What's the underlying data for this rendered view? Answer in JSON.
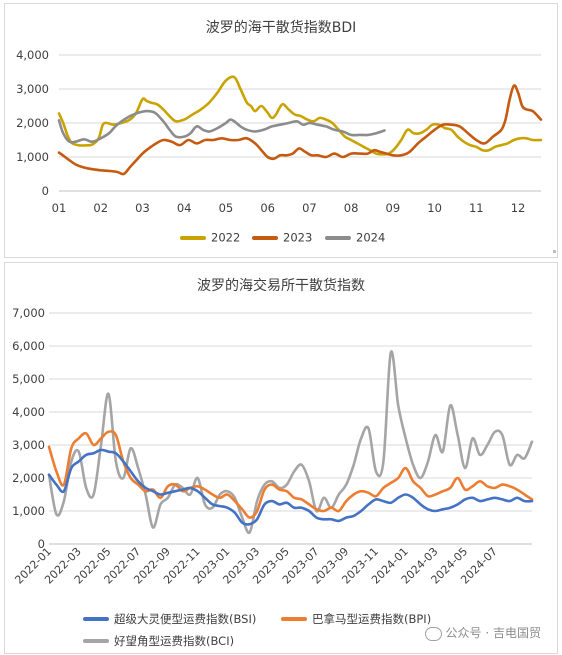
{
  "colors": {
    "y2022": "#c9a300",
    "y2023": "#c55a11",
    "y2024": "#8c8c8c",
    "bsi": "#4472c4",
    "bpi": "#ed7d31",
    "bci": "#a5a5a5",
    "grid": "#d9d9d9"
  },
  "watermark": {
    "icon": "wechat-icon",
    "text": "公众号 · 吉电国贸"
  },
  "chart_data": [
    {
      "type": "line",
      "title": "波罗的海干散货指数BDI",
      "legend_position": "bottom",
      "grid": true,
      "ylim": [
        0,
        4000
      ],
      "yticks": [
        "0",
        "1,000",
        "2,000",
        "3,000",
        "4,000"
      ],
      "xticks": [
        "01",
        "02",
        "03",
        "04",
        "05",
        "06",
        "07",
        "08",
        "09",
        "10",
        "11",
        "12"
      ],
      "xlim": [
        1,
        12.55
      ],
      "series": [
        {
          "name": "2022",
          "x": [
            1,
            1.1,
            1.2,
            1.3,
            1.45,
            1.6,
            1.8,
            1.95,
            2.05,
            2.15,
            2.3,
            2.5,
            2.7,
            2.85,
            3,
            3.1,
            3.2,
            3.35,
            3.5,
            3.65,
            3.8,
            4,
            4.2,
            4.4,
            4.6,
            4.8,
            5,
            5.2,
            5.35,
            5.5,
            5.6,
            5.7,
            5.85,
            6,
            6.1,
            6.2,
            6.35,
            6.5,
            6.65,
            6.8,
            6.95,
            7.1,
            7.25,
            7.4,
            7.55,
            7.7,
            7.85,
            8,
            8.15,
            8.3,
            8.45,
            8.6,
            8.75,
            8.9,
            9.05,
            9.2,
            9.35,
            9.5,
            9.65,
            9.8,
            9.95,
            10.1,
            10.25,
            10.4,
            10.55,
            10.7,
            10.85,
            11,
            11.15,
            11.3,
            11.45,
            11.6,
            11.75,
            11.9,
            12.05,
            12.2,
            12.35,
            12.55
          ],
          "y": [
            2280,
            2000,
            1650,
            1420,
            1350,
            1340,
            1370,
            1550,
            1950,
            2000,
            1950,
            2000,
            2100,
            2300,
            2700,
            2650,
            2600,
            2550,
            2400,
            2200,
            2050,
            2100,
            2250,
            2400,
            2600,
            2900,
            3250,
            3350,
            3000,
            2600,
            2500,
            2350,
            2500,
            2300,
            2150,
            2250,
            2550,
            2400,
            2250,
            2200,
            2100,
            2050,
            2150,
            2100,
            2000,
            1800,
            1600,
            1500,
            1400,
            1300,
            1200,
            1100,
            1080,
            1100,
            1250,
            1500,
            1800,
            1700,
            1700,
            1800,
            1950,
            1950,
            1850,
            1800,
            1600,
            1450,
            1350,
            1300,
            1200,
            1200,
            1300,
            1350,
            1400,
            1500,
            1550,
            1550,
            1500,
            1500
          ]
        },
        {
          "name": "2023",
          "x": [
            1,
            1.2,
            1.4,
            1.6,
            1.8,
            2,
            2.2,
            2.4,
            2.55,
            2.7,
            2.85,
            3,
            3.15,
            3.3,
            3.5,
            3.7,
            3.9,
            4.1,
            4.3,
            4.5,
            4.7,
            4.9,
            5.1,
            5.3,
            5.5,
            5.7,
            5.85,
            6,
            6.15,
            6.3,
            6.45,
            6.6,
            6.75,
            6.9,
            7.05,
            7.2,
            7.4,
            7.6,
            7.8,
            8,
            8.2,
            8.4,
            8.55,
            8.7,
            8.85,
            9,
            9.2,
            9.4,
            9.6,
            9.8,
            10,
            10.2,
            10.4,
            10.6,
            10.8,
            11,
            11.2,
            11.4,
            11.6,
            11.7,
            11.8,
            11.9,
            12,
            12.1,
            12.2,
            12.35,
            12.55
          ],
          "y": [
            1130,
            950,
            780,
            690,
            640,
            610,
            590,
            560,
            500,
            700,
            900,
            1100,
            1250,
            1380,
            1500,
            1450,
            1350,
            1500,
            1400,
            1500,
            1500,
            1550,
            1500,
            1500,
            1550,
            1400,
            1200,
            1000,
            950,
            1050,
            1050,
            1100,
            1250,
            1150,
            1050,
            1050,
            1000,
            1100,
            1000,
            1100,
            1100,
            1100,
            1200,
            1150,
            1100,
            1050,
            1050,
            1150,
            1400,
            1600,
            1800,
            1950,
            1950,
            1900,
            1700,
            1500,
            1400,
            1600,
            1800,
            2100,
            2700,
            3100,
            2900,
            2500,
            2400,
            2350,
            2100
          ]
        },
        {
          "name": "2024",
          "x": [
            1,
            1.1,
            1.25,
            1.4,
            1.6,
            1.8,
            2,
            2.2,
            2.35,
            2.5,
            2.7,
            2.9,
            3.1,
            3.3,
            3.5,
            3.65,
            3.8,
            4,
            4.15,
            4.3,
            4.45,
            4.6,
            4.8,
            5,
            5.1,
            5.2,
            5.35,
            5.5,
            5.7,
            5.9,
            6.1,
            6.3,
            6.5,
            6.7,
            6.85,
            7,
            7.2,
            7.4,
            7.6,
            7.8,
            8,
            8.2,
            8.4,
            8.6,
            8.8
          ],
          "y": [
            2080,
            1700,
            1450,
            1450,
            1520,
            1450,
            1550,
            1700,
            1900,
            2050,
            2200,
            2300,
            2350,
            2300,
            2050,
            1800,
            1600,
            1600,
            1700,
            1900,
            1800,
            1750,
            1850,
            2000,
            2100,
            2050,
            1900,
            1800,
            1750,
            1800,
            1900,
            1950,
            2000,
            2050,
            1950,
            2000,
            1950,
            1900,
            1800,
            1750,
            1650,
            1650,
            1650,
            1700,
            1780
          ]
        }
      ]
    },
    {
      "type": "line",
      "title": "波罗的海交易所干散货指数",
      "legend_position": "bottom",
      "grid": true,
      "ylim": [
        0,
        7000
      ],
      "yticks": [
        "0",
        "1,000",
        "2,000",
        "3,000",
        "4,000",
        "5,000",
        "6,000",
        "7,000"
      ],
      "xticks": [
        "2022-01",
        "2022-03",
        "2022-05",
        "2022-07",
        "2022-09",
        "2022-11",
        "2023-01",
        "2023-03",
        "2023-05",
        "2023-07",
        "2023-09",
        "2023-11",
        "2024-01",
        "2024-03",
        "2024-05",
        "2024-07"
      ],
      "xlim": [
        0,
        32.5
      ],
      "series": [
        {
          "name": "超级大灵便型运费指数(BSI)",
          "x": [
            0,
            0.5,
            1,
            1.5,
            2,
            2.5,
            3,
            3.5,
            4,
            4.5,
            5,
            5.5,
            6,
            6.5,
            7,
            7.5,
            8,
            8.5,
            9,
            9.5,
            10,
            10.5,
            11,
            11.5,
            12,
            12.5,
            13,
            13.5,
            14,
            14.5,
            15,
            15.5,
            16,
            16.5,
            17,
            17.5,
            18,
            18.5,
            19,
            19.5,
            20,
            20.5,
            21,
            21.5,
            22,
            22.5,
            23,
            23.5,
            24,
            24.5,
            25,
            25.5,
            26,
            26.5,
            27,
            27.5,
            28,
            28.5,
            29,
            29.5,
            30,
            30.5,
            31,
            31.5,
            32,
            32.5
          ],
          "y": [
            2100,
            1800,
            1600,
            2300,
            2500,
            2700,
            2750,
            2850,
            2800,
            2750,
            2500,
            2200,
            1900,
            1700,
            1600,
            1500,
            1550,
            1600,
            1650,
            1700,
            1600,
            1400,
            1200,
            1150,
            1100,
            950,
            650,
            600,
            750,
            1200,
            1300,
            1200,
            1250,
            1100,
            1100,
            1000,
            800,
            750,
            750,
            700,
            800,
            850,
            1000,
            1200,
            1350,
            1300,
            1250,
            1400,
            1500,
            1400,
            1200,
            1050,
            1000,
            1050,
            1100,
            1200,
            1350,
            1400,
            1300,
            1350,
            1400,
            1350,
            1300,
            1400,
            1300,
            1300
          ]
        },
        {
          "name": "巴拿马型运费指数(BPI)",
          "x": [
            0,
            0.5,
            1,
            1.5,
            2,
            2.5,
            3,
            3.5,
            4,
            4.5,
            5,
            5.5,
            6,
            6.5,
            7,
            7.5,
            8,
            8.5,
            9,
            9.5,
            10,
            10.5,
            11,
            11.5,
            12,
            12.5,
            13,
            13.5,
            14,
            14.5,
            15,
            15.5,
            16,
            16.5,
            17,
            17.5,
            18,
            18.5,
            19,
            19.5,
            20,
            20.5,
            21,
            21.5,
            22,
            22.5,
            23,
            23.5,
            24,
            24.5,
            25,
            25.5,
            26,
            26.5,
            27,
            27.5,
            28,
            28.5,
            29,
            29.5,
            30,
            30.5,
            31,
            31.5,
            32,
            32.5
          ],
          "y": [
            2950,
            2200,
            1800,
            2900,
            3200,
            3350,
            3000,
            3200,
            3400,
            3300,
            2500,
            2000,
            1800,
            1600,
            1650,
            1400,
            1750,
            1800,
            1600,
            1700,
            1750,
            1650,
            1500,
            1400,
            1500,
            1300,
            1050,
            800,
            1000,
            1650,
            1800,
            1650,
            1600,
            1400,
            1350,
            1200,
            1050,
            1000,
            1100,
            1000,
            1300,
            1500,
            1600,
            1550,
            1450,
            1700,
            1850,
            2000,
            2300,
            1900,
            1700,
            1450,
            1500,
            1600,
            1700,
            2000,
            1650,
            1750,
            1900,
            1750,
            1700,
            1800,
            1750,
            1650,
            1500,
            1350
          ]
        },
        {
          "name": "好望角型运费指数(BCI)",
          "x": [
            0,
            0.5,
            1,
            1.5,
            2,
            2.5,
            3,
            3.5,
            4,
            4.5,
            5,
            5.5,
            6,
            6.5,
            7,
            7.5,
            8,
            8.5,
            9,
            9.5,
            10,
            10.5,
            11,
            11.5,
            12,
            12.5,
            13,
            13.5,
            14,
            14.5,
            15,
            15.5,
            16,
            16.5,
            17,
            17.5,
            18,
            18.5,
            19,
            19.5,
            20,
            20.5,
            21,
            21.5,
            22,
            22.5,
            23,
            23.5,
            24,
            24.5,
            25,
            25.5,
            26,
            26.5,
            27,
            27.5,
            28,
            28.5,
            29,
            29.5,
            30,
            30.5,
            31,
            31.5,
            32,
            32.5
          ],
          "y": [
            2100,
            900,
            1300,
            2500,
            2800,
            1700,
            1500,
            3000,
            4550,
            2500,
            2000,
            2900,
            2300,
            1500,
            500,
            1200,
            1400,
            1800,
            1700,
            1500,
            2000,
            1200,
            1100,
            1500,
            1600,
            1400,
            800,
            350,
            1300,
            1800,
            1900,
            1700,
            1800,
            2200,
            2400,
            1900,
            1000,
            1400,
            1100,
            1500,
            1800,
            2400,
            3200,
            3500,
            2200,
            2500,
            5800,
            4200,
            3200,
            2400,
            2000,
            2500,
            3300,
            2800,
            4200,
            3300,
            2300,
            3200,
            2700,
            3000,
            3400,
            3300,
            2400,
            2700,
            2600,
            3100
          ]
        }
      ]
    }
  ]
}
